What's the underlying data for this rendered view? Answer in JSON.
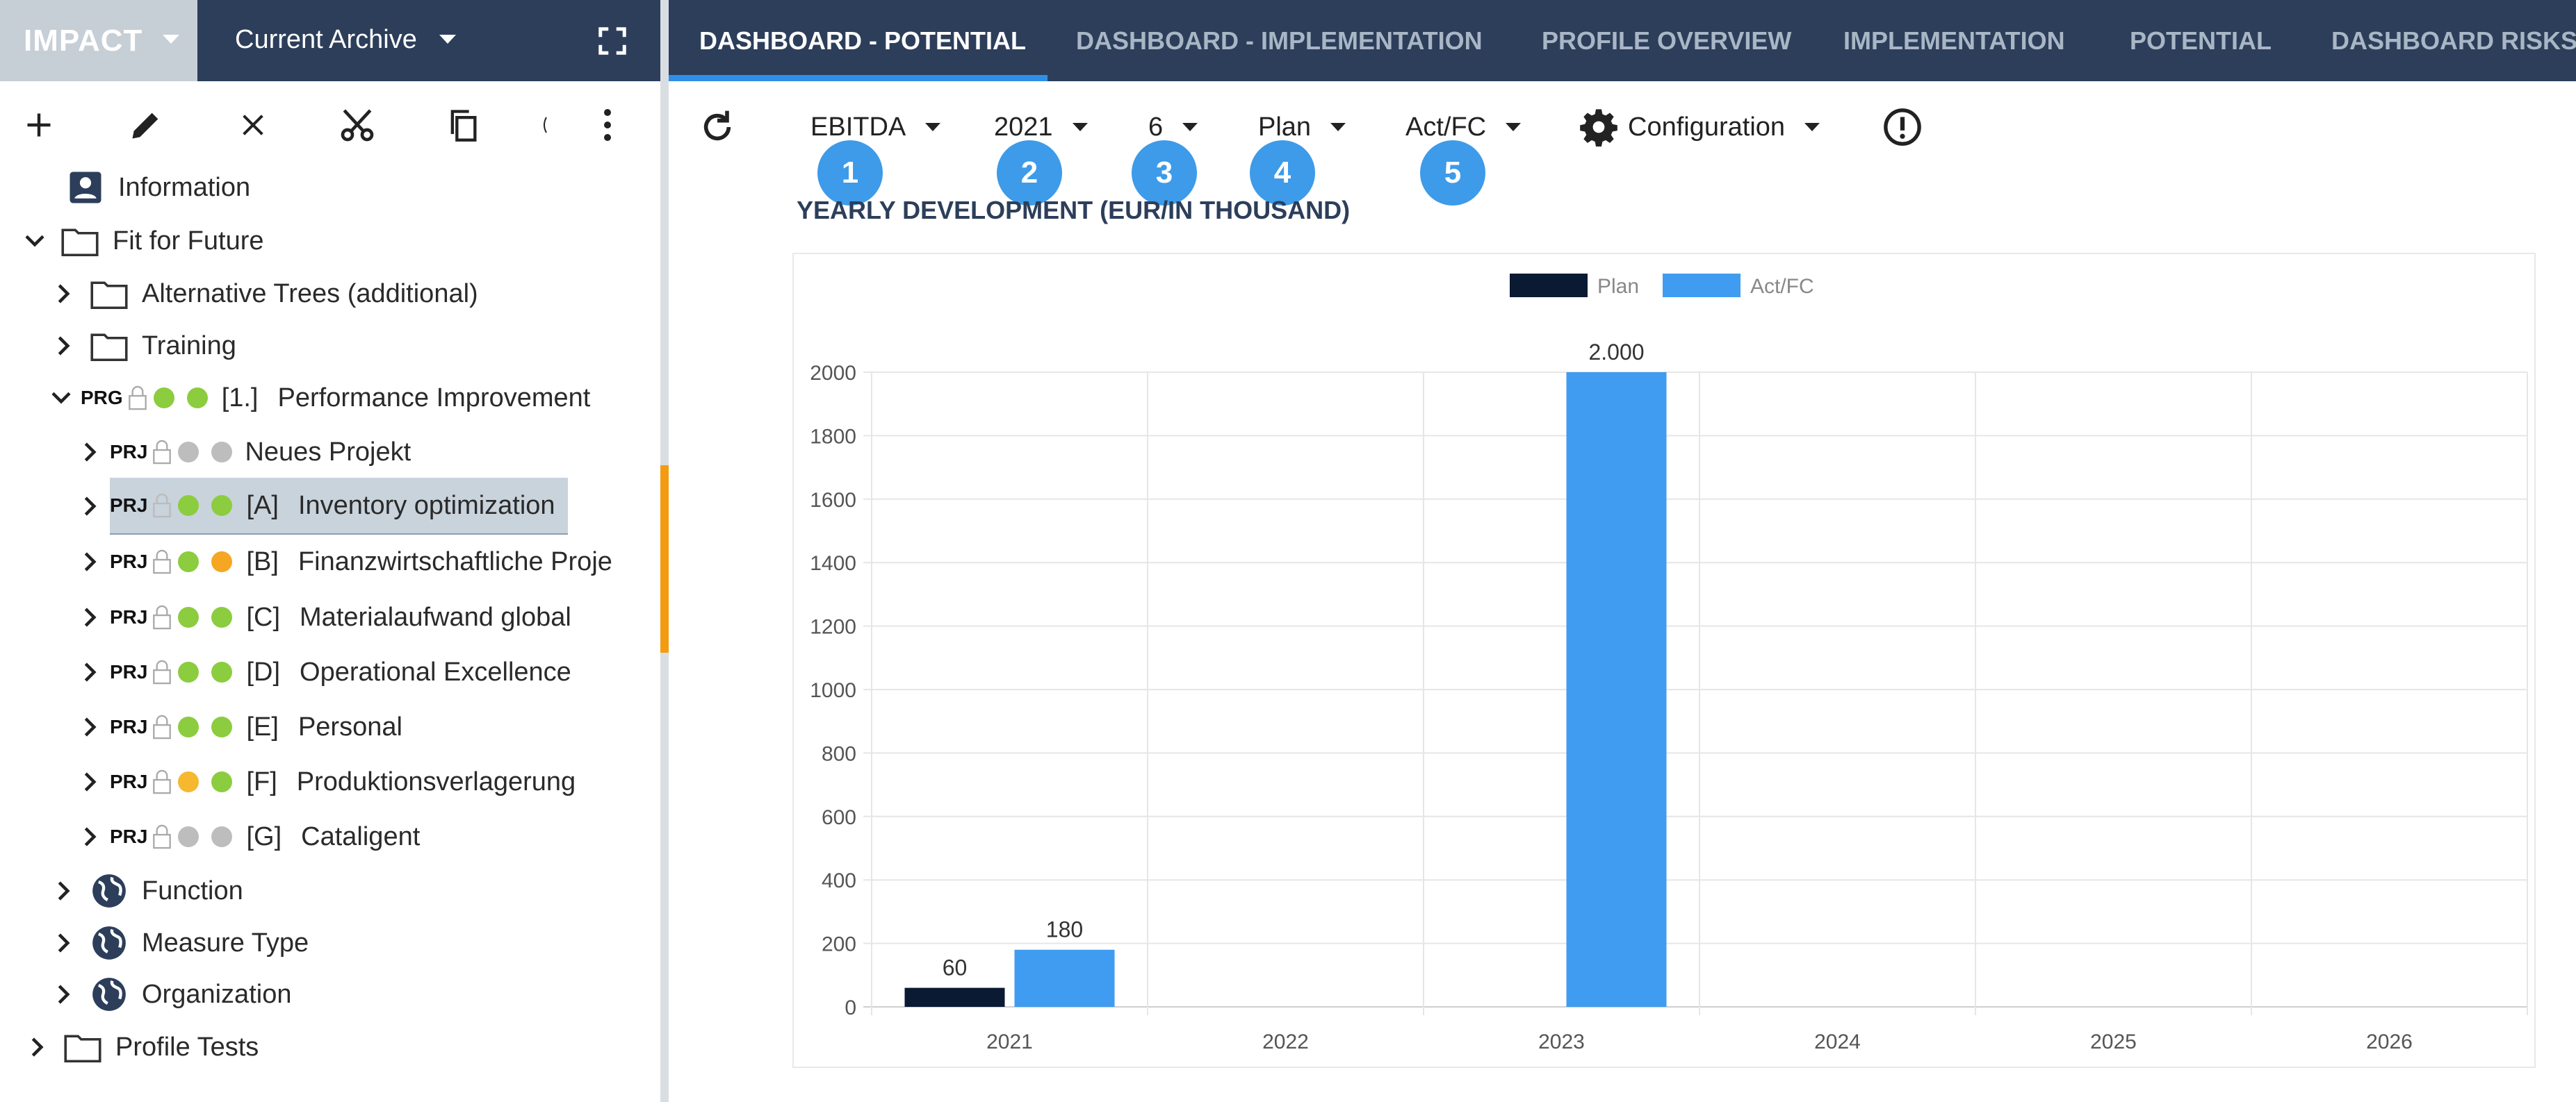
{
  "app": {
    "brand": "IMPACT",
    "archive": "Current Archive"
  },
  "tree": [
    {
      "label": "Information",
      "kind": "user"
    },
    {
      "label": "Fit for Future",
      "kind": "folder"
    },
    {
      "label": "Alternative Trees (additional)",
      "kind": "folder"
    },
    {
      "label": "Training",
      "kind": "folder"
    },
    {
      "tag": "PRG",
      "code": "[1.]",
      "label": "Performance Improvement",
      "status": [
        "green",
        "green"
      ]
    },
    {
      "tag": "PRJ",
      "code": "",
      "label": "Neues Projekt",
      "status": [
        "gray",
        "gray"
      ]
    },
    {
      "tag": "PRJ",
      "code": "[A]",
      "label": "Inventory optimization",
      "status": [
        "green",
        "green"
      ],
      "selected": true
    },
    {
      "tag": "PRJ",
      "code": "[B]",
      "label": "Finanzwirtschaftliche Proje",
      "status": [
        "green",
        "orange"
      ]
    },
    {
      "tag": "PRJ",
      "code": "[C]",
      "label": "Materialaufwand global",
      "status": [
        "green",
        "green"
      ]
    },
    {
      "tag": "PRJ",
      "code": "[D]",
      "label": "Operational Excellence",
      "status": [
        "green",
        "green"
      ]
    },
    {
      "tag": "PRJ",
      "code": "[E]",
      "label": "Personal",
      "status": [
        "green",
        "green"
      ]
    },
    {
      "tag": "PRJ",
      "code": "[F]",
      "label": "Produktionsverlagerung",
      "status": [
        "orange",
        "green"
      ]
    },
    {
      "tag": "PRJ",
      "code": "[G]",
      "label": "Cataligent",
      "status": [
        "gray",
        "gray"
      ]
    },
    {
      "label": "Function",
      "kind": "globe"
    },
    {
      "label": "Measure Type",
      "kind": "globe"
    },
    {
      "label": "Organization",
      "kind": "globe"
    },
    {
      "label": "Profile Tests",
      "kind": "folder"
    }
  ],
  "tabs": [
    "DASHBOARD - POTENTIAL",
    "DASHBOARD - IMPLEMENTATION",
    "PROFILE OVERVIEW",
    "IMPLEMENTATION",
    "POTENTIAL",
    "DASHBOARD RISKS"
  ],
  "filters": {
    "metric": "EBITDA",
    "year": "2021",
    "month": "6",
    "plan": "Plan",
    "actfc": "Act/FC",
    "configuration": "Configuration"
  },
  "badges": [
    "1",
    "2",
    "3",
    "4",
    "5"
  ],
  "colors": {
    "plan": "#0a1a33",
    "actfc": "#409cf0",
    "header": "#2c3e5a",
    "accent": "#2f8fe6"
  },
  "chart_data": {
    "type": "bar",
    "title": "YEARLY DEVELOPMENT (EUR/IN THOUSAND)",
    "categories": [
      "2021",
      "2022",
      "2023",
      "2024",
      "2025",
      "2026"
    ],
    "series": [
      {
        "name": "Plan",
        "values": [
          60,
          0,
          0,
          0,
          0,
          0
        ],
        "labels": [
          "60",
          "",
          "",
          "",
          "",
          ""
        ]
      },
      {
        "name": "Act/FC",
        "values": [
          180,
          0,
          2000,
          0,
          0,
          0
        ],
        "labels": [
          "180",
          "",
          "2.000",
          "",
          "",
          ""
        ]
      }
    ],
    "yticks": [
      "0",
      "200",
      "400",
      "600",
      "800",
      "1000",
      "1200",
      "1400",
      "1600",
      "1800",
      "2000"
    ],
    "ylim": [
      0,
      2000
    ],
    "grid": true,
    "legend": "top-center"
  }
}
